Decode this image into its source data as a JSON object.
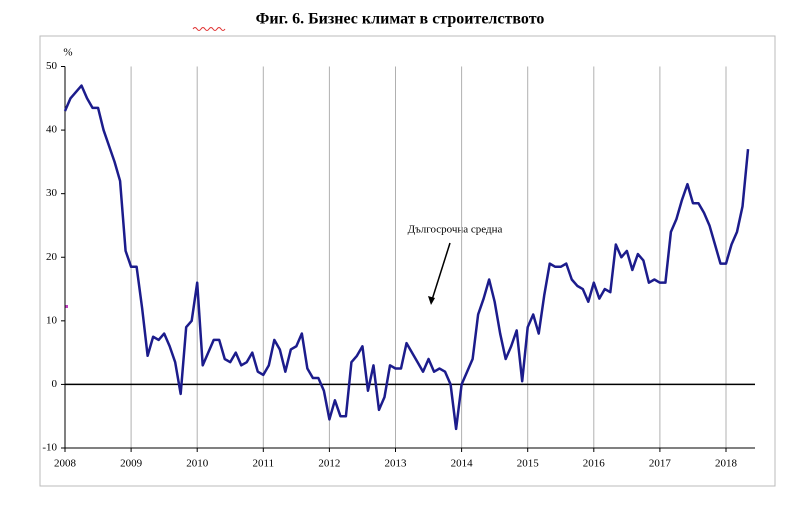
{
  "chart_data": {
    "type": "line",
    "title": "Фиг. 6. Бизнес климат в строителството",
    "y_label": "%",
    "annotation": "Дългосрочна средна",
    "categories": [
      "2008",
      null,
      null,
      null,
      null,
      null,
      null,
      null,
      null,
      null,
      null,
      null,
      "2009",
      null,
      null,
      null,
      null,
      null,
      null,
      null,
      null,
      null,
      null,
      null,
      "2010",
      null,
      null,
      null,
      null,
      null,
      null,
      null,
      null,
      null,
      null,
      null,
      "2011",
      null,
      null,
      null,
      null,
      null,
      null,
      null,
      null,
      null,
      null,
      null,
      "2012",
      null,
      null,
      null,
      null,
      null,
      null,
      null,
      null,
      null,
      null,
      null,
      "2013",
      null,
      null,
      null,
      null,
      null,
      null,
      null,
      null,
      null,
      null,
      null,
      "2014",
      null,
      null,
      null,
      null,
      null,
      null,
      null,
      null,
      null,
      null,
      null,
      "2015",
      null,
      null,
      null,
      null,
      null,
      null,
      null,
      null,
      null,
      null,
      null,
      "2016",
      null,
      null,
      null,
      null,
      null,
      null,
      null,
      null,
      null,
      null,
      null,
      "2017",
      null,
      null,
      null,
      null,
      null,
      null,
      null,
      null,
      null,
      null,
      null,
      "2018",
      null,
      null,
      null,
      null
    ],
    "series": [
      {
        "color": "#1c1c8c",
        "values": [
          43,
          45,
          46,
          47,
          45,
          43.5,
          43.5,
          40,
          37.5,
          35,
          32,
          21,
          18.5,
          18.5,
          12,
          4.5,
          7.5,
          7,
          8,
          6,
          3.5,
          -1.5,
          9,
          10,
          16,
          3,
          5,
          7,
          7,
          4,
          3.5,
          5,
          3,
          3.5,
          5,
          2,
          1.5,
          3,
          7,
          5.5,
          2,
          5.5,
          6,
          8,
          2.5,
          1,
          1,
          -1,
          -5.5,
          -2.5,
          -5,
          -5,
          3.5,
          4.5,
          6,
          -1,
          3,
          -4,
          -2,
          3,
          2.5,
          2.5,
          6.5,
          5,
          3.5,
          2,
          4,
          2,
          2.5,
          2,
          0,
          -7,
          0,
          2,
          4,
          11,
          13.5,
          16.5,
          13,
          8,
          4,
          6,
          8.5,
          0.5,
          9,
          11,
          8,
          14,
          19,
          18.5,
          18.5,
          19,
          16.5,
          15.5,
          15,
          13,
          16,
          13.5,
          15,
          14.5,
          22,
          20,
          21,
          18,
          20.5,
          19.5,
          16,
          16.5,
          16,
          16,
          24,
          26,
          29,
          31.5,
          28.5,
          28.5,
          27,
          25,
          22,
          19,
          19,
          22,
          24,
          28,
          37
        ]
      }
    ],
    "ylim": [
      -10,
      50
    ],
    "yticks": [
      -10,
      0,
      10,
      20,
      30,
      40,
      50
    ],
    "grid": true
  }
}
